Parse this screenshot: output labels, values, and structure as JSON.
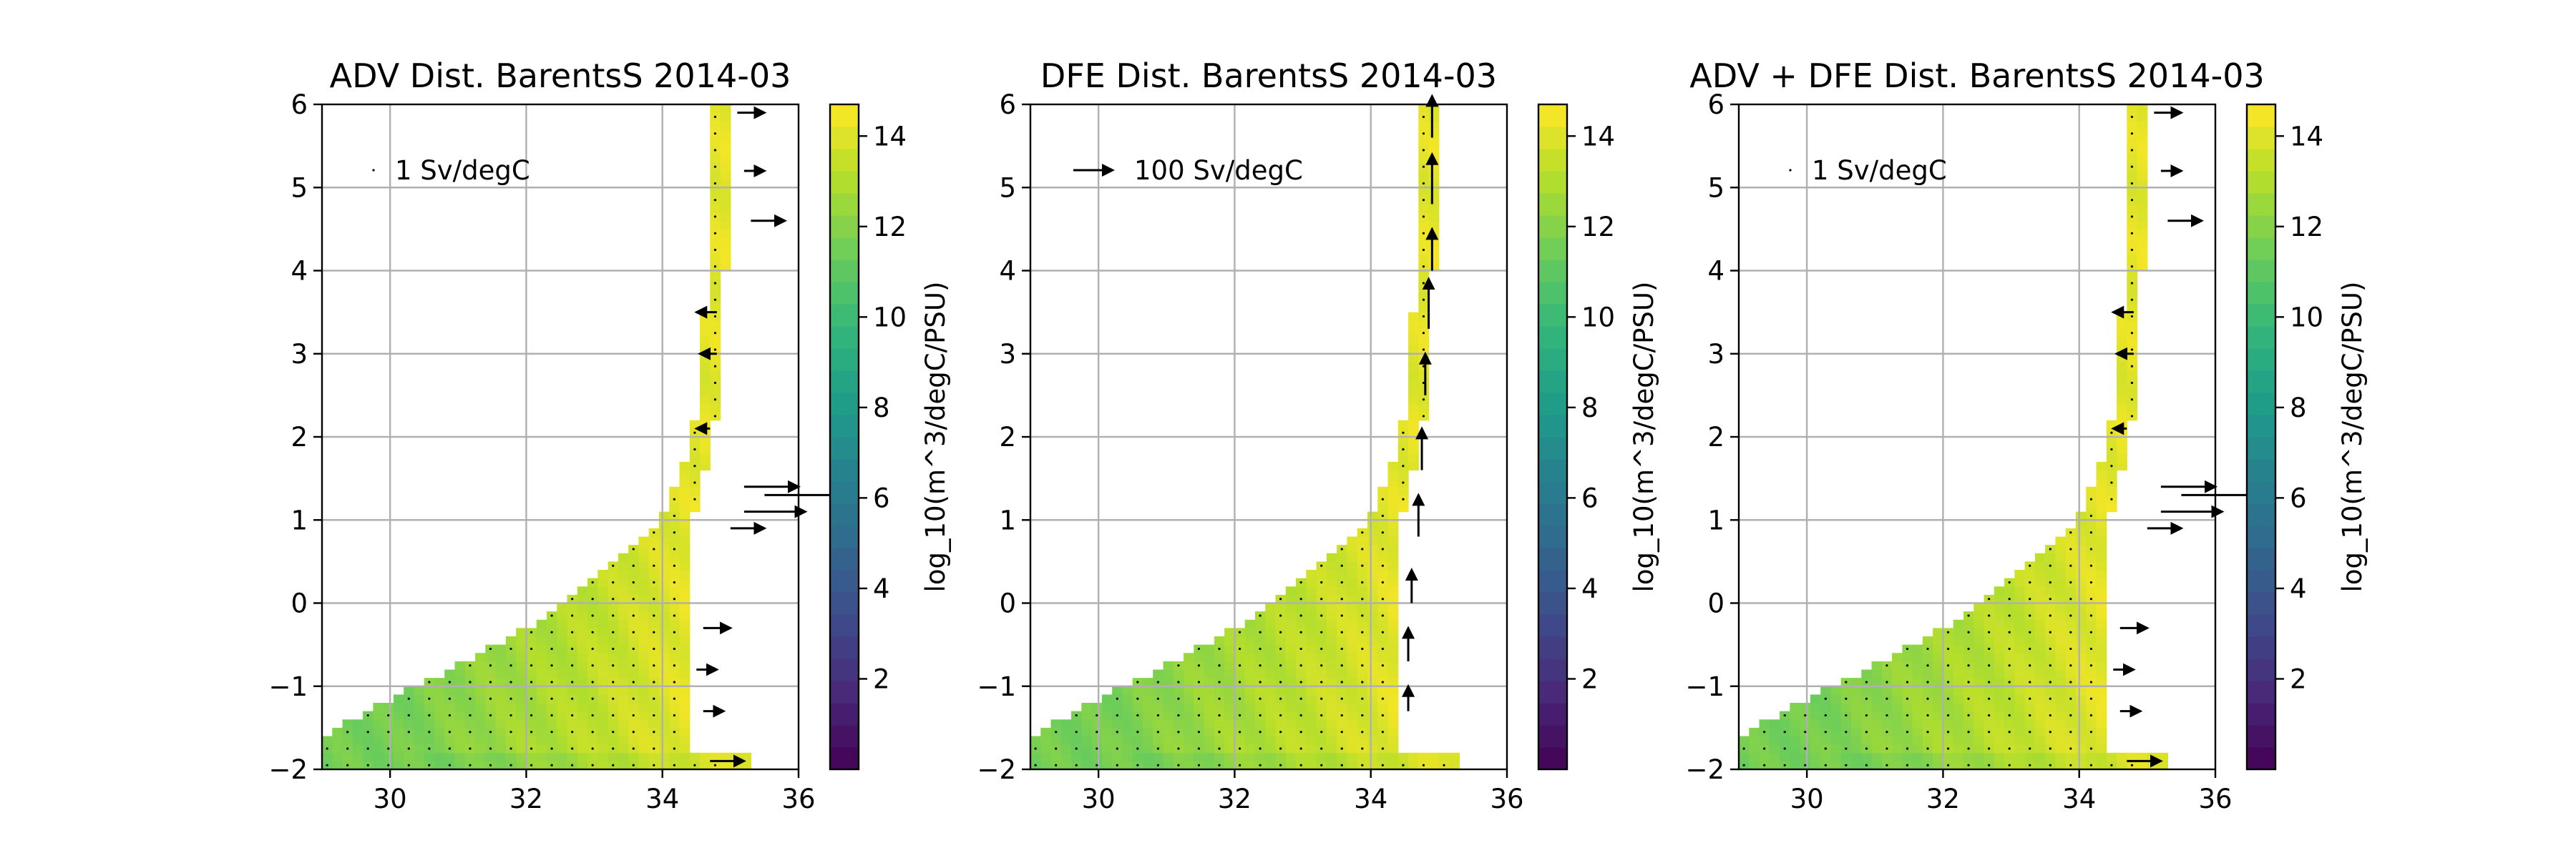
{
  "chart_data": [
    {
      "type": "heatmap",
      "title": "ADV Dist. BarentsS 2014-03",
      "xlim": [
        29,
        36
      ],
      "ylim": [
        -2,
        6
      ],
      "xticks": [
        30,
        32,
        34,
        36
      ],
      "yticks": [
        -2,
        -1,
        0,
        1,
        2,
        3,
        4,
        5,
        6
      ],
      "grid": true,
      "colorbar": {
        "label": "log_10(m^3/degC/PSU)",
        "ticks": [
          2,
          4,
          6,
          8,
          10,
          12,
          14
        ],
        "range": [
          0,
          14.7
        ],
        "colormap": "viridis"
      },
      "quiver_key": {
        "label": "1 Sv/degC"
      },
      "vector_style": "adv",
      "vectors": [
        {
          "x": 35.1,
          "y": 5.9,
          "u": 0.4,
          "v": 0.0
        },
        {
          "x": 35.2,
          "y": 5.2,
          "u": 0.3,
          "v": 0.0
        },
        {
          "x": 35.3,
          "y": 4.6,
          "u": 0.5,
          "v": 0.0
        },
        {
          "x": 34.8,
          "y": 3.5,
          "u": -0.3,
          "v": 0.0
        },
        {
          "x": 34.8,
          "y": 3.0,
          "u": -0.25,
          "v": 0.0
        },
        {
          "x": 34.7,
          "y": 2.1,
          "u": -0.2,
          "v": 0.0
        },
        {
          "x": 35.2,
          "y": 1.4,
          "u": 0.8,
          "v": 0.0
        },
        {
          "x": 35.5,
          "y": 1.3,
          "u": 1.2,
          "v": 0.0
        },
        {
          "x": 35.2,
          "y": 1.1,
          "u": 0.9,
          "v": 0.0
        },
        {
          "x": 35.0,
          "y": 0.9,
          "u": 0.5,
          "v": 0.0
        },
        {
          "x": 34.6,
          "y": -0.3,
          "u": 0.4,
          "v": 0.0
        },
        {
          "x": 34.5,
          "y": -0.8,
          "u": 0.3,
          "v": 0.0
        },
        {
          "x": 34.6,
          "y": -1.3,
          "u": 0.3,
          "v": 0.0
        },
        {
          "x": 34.7,
          "y": -1.9,
          "u": 0.5,
          "v": 0.0
        }
      ]
    },
    {
      "type": "heatmap",
      "title": "DFE Dist. BarentsS 2014-03",
      "xlim": [
        29,
        36
      ],
      "ylim": [
        -2,
        6
      ],
      "xticks": [
        30,
        32,
        34,
        36
      ],
      "yticks": [
        -2,
        -1,
        0,
        1,
        2,
        3,
        4,
        5,
        6
      ],
      "grid": true,
      "colorbar": {
        "label": "log_10(m^3/degC/PSU)",
        "ticks": [
          2,
          4,
          6,
          8,
          10,
          12,
          14
        ],
        "range": [
          0,
          14.7
        ],
        "colormap": "viridis"
      },
      "quiver_key": {
        "label": "100 Sv/degC"
      },
      "vector_style": "dfe",
      "vectors": [
        {
          "x": 34.9,
          "y": 5.6,
          "u": 0.0,
          "v": 0.5
        },
        {
          "x": 34.9,
          "y": 4.8,
          "u": 0.0,
          "v": 0.6
        },
        {
          "x": 34.9,
          "y": 4.0,
          "u": 0.0,
          "v": 0.5
        },
        {
          "x": 34.85,
          "y": 3.3,
          "u": 0.0,
          "v": 0.6
        },
        {
          "x": 34.8,
          "y": 2.5,
          "u": 0.0,
          "v": 0.5
        },
        {
          "x": 34.75,
          "y": 1.6,
          "u": 0.0,
          "v": 0.5
        },
        {
          "x": 34.7,
          "y": 0.8,
          "u": 0.0,
          "v": 0.5
        },
        {
          "x": 34.6,
          "y": 0.0,
          "u": 0.0,
          "v": 0.4
        },
        {
          "x": 34.55,
          "y": -0.7,
          "u": 0.0,
          "v": 0.4
        },
        {
          "x": 34.55,
          "y": -1.3,
          "u": 0.0,
          "v": 0.3
        }
      ]
    },
    {
      "type": "heatmap",
      "title": "ADV + DFE Dist. BarentsS 2014-03",
      "xlim": [
        29,
        36
      ],
      "ylim": [
        -2,
        6
      ],
      "xticks": [
        30,
        32,
        34,
        36
      ],
      "yticks": [
        -2,
        -1,
        0,
        1,
        2,
        3,
        4,
        5,
        6
      ],
      "grid": true,
      "colorbar": {
        "label": "log_10(m^3/degC/PSU)",
        "ticks": [
          2,
          4,
          6,
          8,
          10,
          12,
          14
        ],
        "range": [
          0,
          14.7
        ],
        "colormap": "viridis"
      },
      "quiver_key": {
        "label": "1 Sv/degC"
      },
      "vector_style": "adv",
      "vectors": [
        {
          "x": 35.1,
          "y": 5.9,
          "u": 0.4,
          "v": 0.0
        },
        {
          "x": 35.2,
          "y": 5.2,
          "u": 0.3,
          "v": 0.0
        },
        {
          "x": 35.3,
          "y": 4.6,
          "u": 0.5,
          "v": 0.0
        },
        {
          "x": 34.8,
          "y": 3.5,
          "u": -0.3,
          "v": 0.0
        },
        {
          "x": 34.8,
          "y": 3.0,
          "u": -0.25,
          "v": 0.0
        },
        {
          "x": 34.7,
          "y": 2.1,
          "u": -0.2,
          "v": 0.0
        },
        {
          "x": 35.2,
          "y": 1.4,
          "u": 0.8,
          "v": 0.0
        },
        {
          "x": 35.5,
          "y": 1.3,
          "u": 1.2,
          "v": 0.0
        },
        {
          "x": 35.2,
          "y": 1.1,
          "u": 0.9,
          "v": 0.0
        },
        {
          "x": 35.0,
          "y": 0.9,
          "u": 0.5,
          "v": 0.0
        },
        {
          "x": 34.6,
          "y": -0.3,
          "u": 0.4,
          "v": 0.0
        },
        {
          "x": 34.5,
          "y": -0.8,
          "u": 0.3,
          "v": 0.0
        },
        {
          "x": 34.6,
          "y": -1.3,
          "u": 0.3,
          "v": 0.0
        },
        {
          "x": 34.7,
          "y": -1.9,
          "u": 0.5,
          "v": 0.0
        }
      ]
    }
  ],
  "colors": {
    "viridis_low": "#440154",
    "viridis_mid": "#21918c",
    "viridis_high": "#fde725",
    "grid": "#b0b0b0",
    "vector": "#000000"
  }
}
